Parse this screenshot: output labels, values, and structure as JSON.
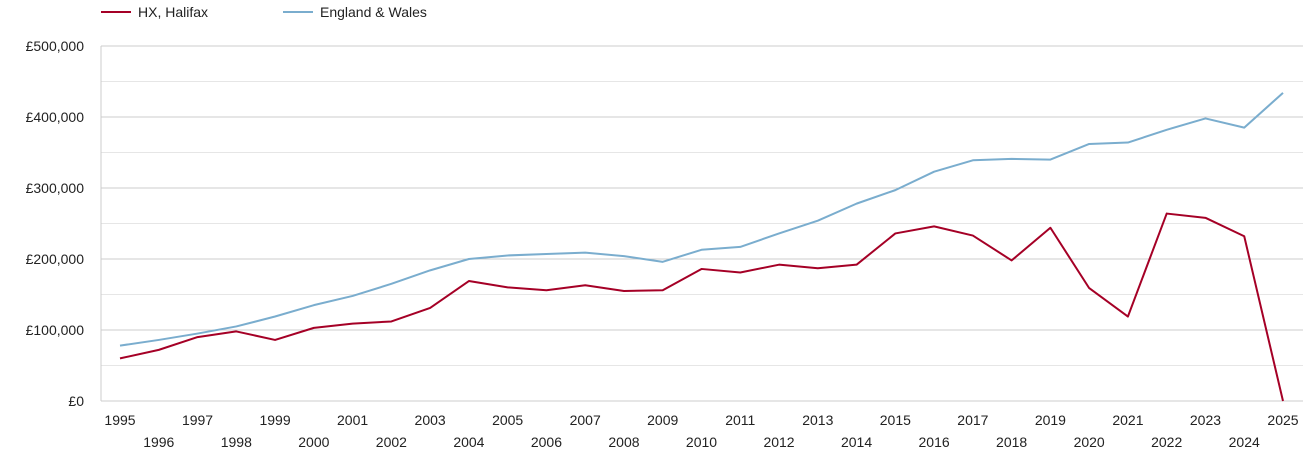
{
  "chart_data": {
    "type": "line",
    "title": "",
    "xlabel": "",
    "ylabel": "",
    "x": [
      1995,
      1996,
      1997,
      1998,
      1999,
      2000,
      2001,
      2002,
      2003,
      2004,
      2005,
      2006,
      2007,
      2008,
      2009,
      2010,
      2011,
      2012,
      2013,
      2014,
      2015,
      2016,
      2017,
      2018,
      2019,
      2020,
      2021,
      2022,
      2023,
      2024,
      2025
    ],
    "xlim": [
      1995,
      2025
    ],
    "ylim": [
      0,
      500000
    ],
    "y_ticks": [
      0,
      100000,
      200000,
      300000,
      400000,
      500000
    ],
    "y_tick_labels": [
      "£0",
      "£100,000",
      "£200,000",
      "£300,000",
      "£400,000",
      "£500,000"
    ],
    "grid": true,
    "legend_position": "top-left",
    "series": [
      {
        "name": "HX, Halifax",
        "color": "#a50026",
        "values": [
          60000,
          72000,
          90000,
          98000,
          86000,
          103000,
          109000,
          112000,
          131000,
          169000,
          160000,
          156000,
          163000,
          155000,
          156000,
          186000,
          181000,
          192000,
          187000,
          192000,
          236000,
          246000,
          233000,
          198000,
          244000,
          159000,
          119000,
          264000,
          258000,
          232000,
          0
        ]
      },
      {
        "name": "England & Wales",
        "color": "#7aadce",
        "values": [
          78000,
          86000,
          95000,
          105000,
          119000,
          135000,
          148000,
          165000,
          184000,
          200000,
          205000,
          207000,
          209000,
          204000,
          196000,
          213000,
          217000,
          236000,
          254000,
          278000,
          297000,
          323000,
          339000,
          341000,
          340000,
          362000,
          364000,
          382000,
          398000,
          385000,
          434000
        ]
      }
    ]
  }
}
